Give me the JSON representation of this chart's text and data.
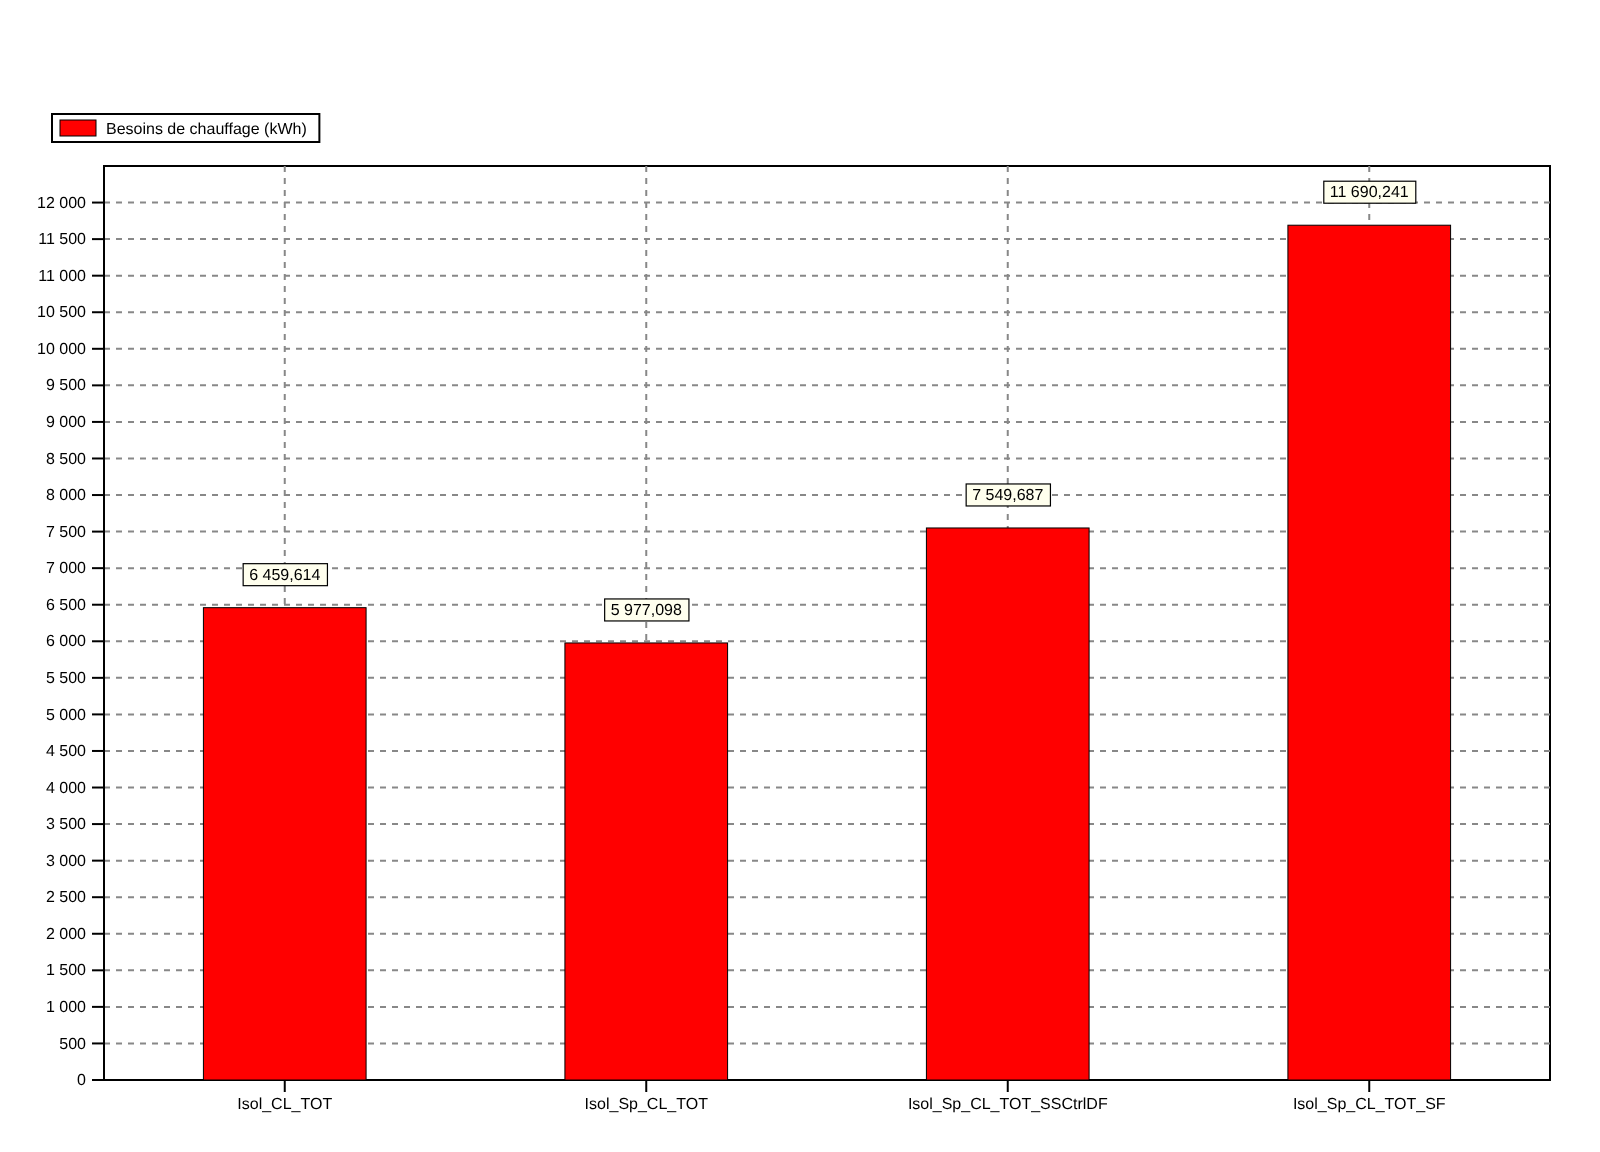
{
  "chart_data": {
    "type": "bar",
    "categories": [
      "Isol_CL_TOT",
      "Isol_Sp_CL_TOT",
      "Isol_Sp_CL_TOT_SSCtrlDF",
      "Isol_Sp_CL_TOT_SF"
    ],
    "series": [
      {
        "name": "Besoins de chauffage (kWh)",
        "color": "#ff0000",
        "values": [
          6459.614,
          5977.098,
          7549.687,
          11690.241
        ],
        "value_labels": [
          "6 459,614",
          "5 977,098",
          "7 549,687",
          "11 690,241"
        ]
      }
    ],
    "ylim": [
      0,
      12500
    ],
    "yticks": [
      {
        "value": 0,
        "label": "0"
      },
      {
        "value": 500,
        "label": "500"
      },
      {
        "value": 1000,
        "label": "1 000"
      },
      {
        "value": 1500,
        "label": "1 500"
      },
      {
        "value": 2000,
        "label": "2 000"
      },
      {
        "value": 2500,
        "label": "2 500"
      },
      {
        "value": 3000,
        "label": "3 000"
      },
      {
        "value": 3500,
        "label": "3 500"
      },
      {
        "value": 4000,
        "label": "4 000"
      },
      {
        "value": 4500,
        "label": "4 500"
      },
      {
        "value": 5000,
        "label": "5 000"
      },
      {
        "value": 5500,
        "label": "5 500"
      },
      {
        "value": 6000,
        "label": "6 000"
      },
      {
        "value": 6500,
        "label": "6 500"
      },
      {
        "value": 7000,
        "label": "7 000"
      },
      {
        "value": 7500,
        "label": "7 500"
      },
      {
        "value": 8000,
        "label": "8 000"
      },
      {
        "value": 8500,
        "label": "8 500"
      },
      {
        "value": 9000,
        "label": "9 000"
      },
      {
        "value": 9500,
        "label": "9 500"
      },
      {
        "value": 10000,
        "label": "10 000"
      },
      {
        "value": 10500,
        "label": "10 500"
      },
      {
        "value": 11000,
        "label": "11 000"
      },
      {
        "value": 11500,
        "label": "11 500"
      },
      {
        "value": 12000,
        "label": "12 000"
      }
    ],
    "grid": true,
    "legend": "top left"
  }
}
